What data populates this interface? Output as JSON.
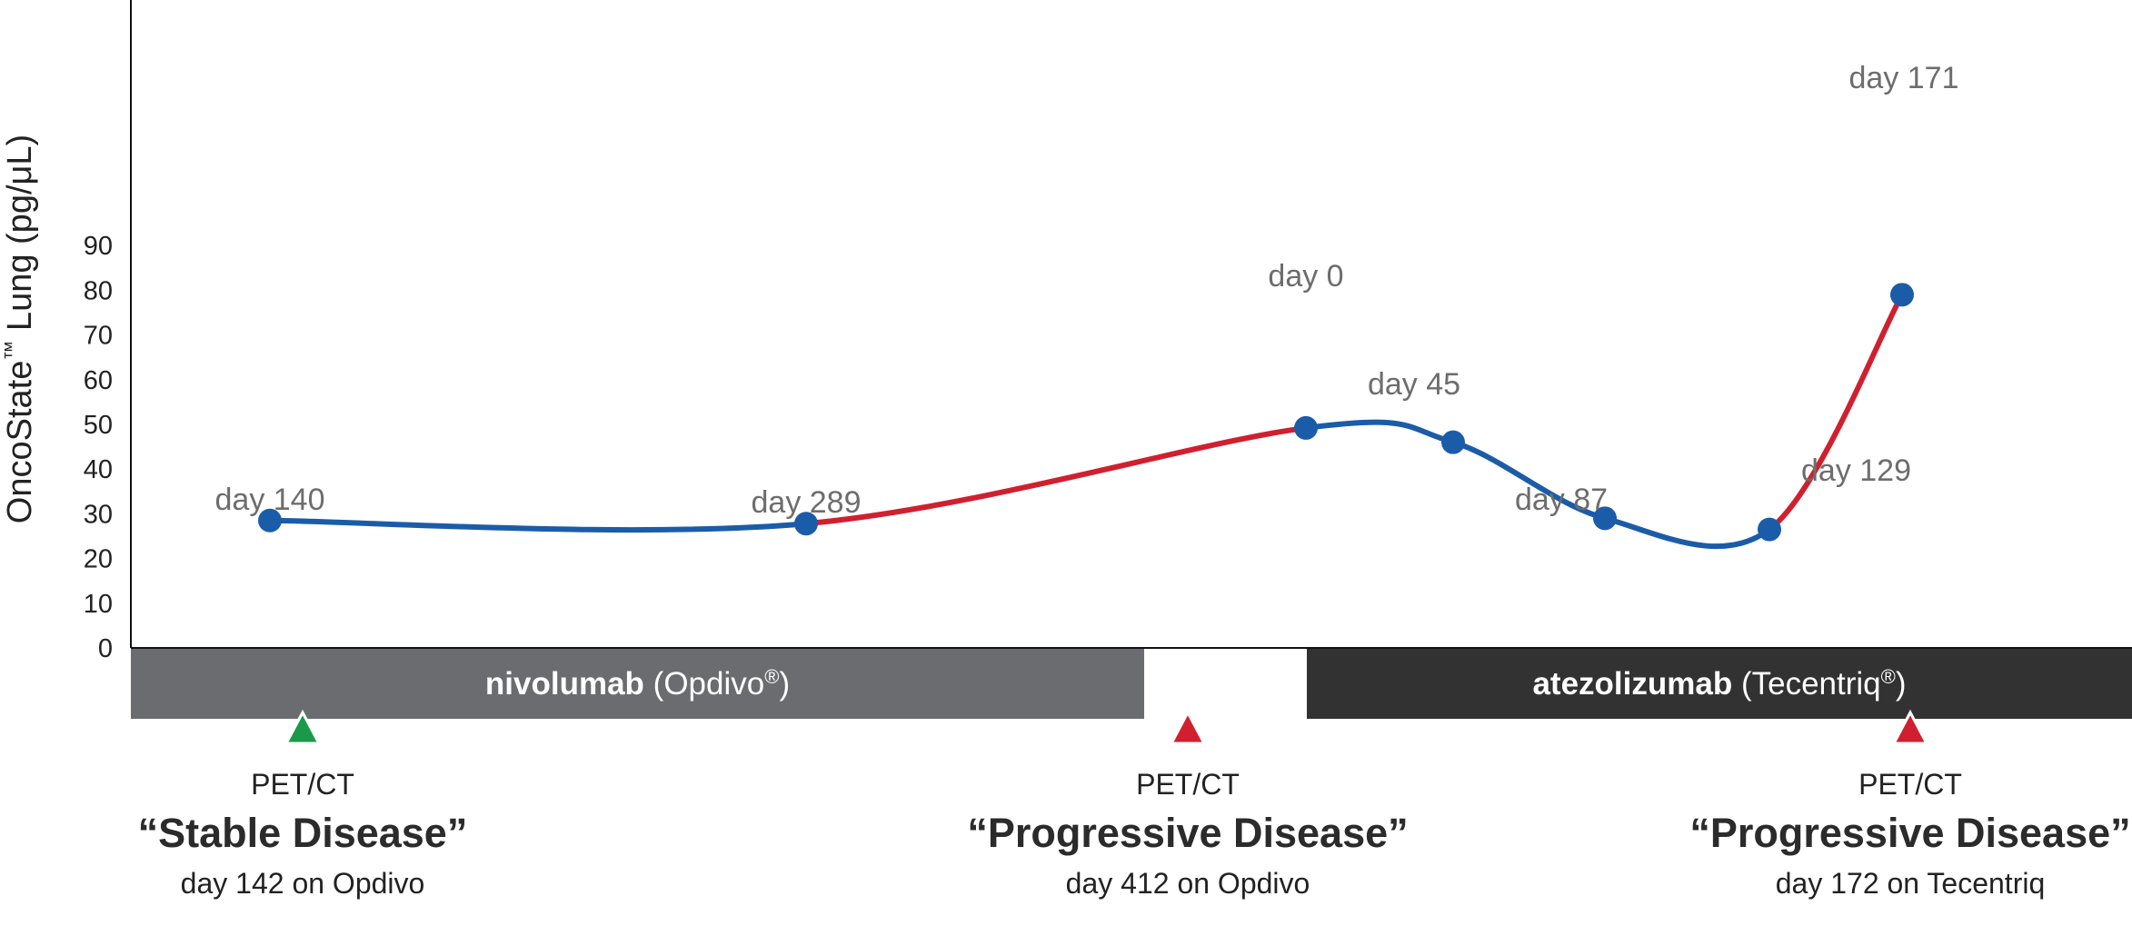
{
  "chart_data": {
    "type": "line",
    "ylabel": "OncoState™ Lung (pg/μL)",
    "ylabel_main": "OncoState",
    "ylabel_tm": "™",
    "ylabel_rest": " Lung (pg/μL)",
    "yticks": [
      "0",
      "10",
      "20",
      "30",
      "40",
      "50",
      "60",
      "70",
      "80",
      "90"
    ],
    "ylim": [
      0,
      100
    ],
    "points": [
      {
        "label": "day 140",
        "y": 28.5
      },
      {
        "label": "day 289",
        "y": 27.8
      },
      {
        "label": "day 0",
        "y": 49.2
      },
      {
        "label": "day 45",
        "y": 46.0
      },
      {
        "label": "day 87",
        "y": 29.0
      },
      {
        "label": "day 129",
        "y": 26.5
      },
      {
        "label": "day 171",
        "y": 79.0
      }
    ],
    "segment_status": [
      "stable",
      "rising",
      "stable",
      "stable",
      "stable",
      "rising"
    ],
    "colors": {
      "stable_line": "#1b5ca8",
      "rising_line": "#d0202f",
      "marker": "#1b5ca8",
      "axis": "#111111",
      "label": "#6d6d6d"
    },
    "treatments": [
      {
        "drug": "nivolumab",
        "brand": "(Opdivo",
        "reg": "®",
        "close": ")",
        "color": "#6b6c6f"
      },
      {
        "drug": "atezolizumab",
        "brand": "(Tecentriq",
        "reg": "®",
        "close": ")",
        "color": "#323232"
      }
    ],
    "scans": [
      {
        "marker_color": "#1a9a48",
        "modality": "PET/CT",
        "result": "“Stable Disease”",
        "detail": "day 142 on Opdivo"
      },
      {
        "marker_color": "#d0202f",
        "modality": "PET/CT",
        "result": "“Progressive Disease”",
        "detail": "day 412 on Opdivo"
      },
      {
        "marker_color": "#d0202f",
        "modality": "PET/CT",
        "result": "“Progressive Disease”",
        "detail": "day 172 on Tecentriq"
      }
    ]
  }
}
